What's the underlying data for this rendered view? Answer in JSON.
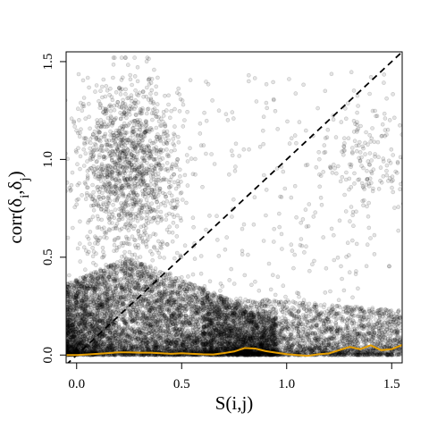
{
  "chart_data": {
    "type": "scatter",
    "xlabel": "S(i,j)",
    "ylabel_parts": [
      "corr(δ",
      "i",
      ",δ",
      "j",
      ")"
    ],
    "xlim": [
      -0.05,
      1.55
    ],
    "ylim": [
      -0.04,
      1.55
    ],
    "x_ticks": [
      0.0,
      0.5,
      1.0,
      1.5
    ],
    "x_tick_labels": [
      "0.0",
      "0.5",
      "1.0",
      "1.5"
    ],
    "y_ticks": [
      0.0,
      0.5,
      1.0,
      1.5
    ],
    "y_tick_labels": [
      "0.0",
      "0.5",
      "1.0",
      "1.5"
    ],
    "grid": false,
    "legend": "none",
    "point_color": "#000000",
    "reference_line": {
      "style": "dashed",
      "color": "#000000",
      "slope": 1,
      "intercept": 0
    },
    "smooth_line": {
      "color": "#E69F00",
      "x": [
        -0.05,
        0.0,
        0.05,
        0.1,
        0.15,
        0.2,
        0.25,
        0.3,
        0.35,
        0.4,
        0.45,
        0.5,
        0.55,
        0.6,
        0.65,
        0.7,
        0.75,
        0.8,
        0.85,
        0.9,
        0.95,
        1.0,
        1.05,
        1.1,
        1.15,
        1.2,
        1.25,
        1.3,
        1.35,
        1.4,
        1.45,
        1.5,
        1.55
      ],
      "y": [
        0.0,
        0.0,
        0.003,
        0.006,
        0.01,
        0.014,
        0.014,
        0.012,
        0.012,
        0.009,
        0.006,
        0.009,
        0.006,
        0.004,
        0.003,
        0.01,
        0.018,
        0.036,
        0.033,
        0.02,
        0.012,
        0.005,
        0.0,
        -0.004,
        0.004,
        0.008,
        0.025,
        0.042,
        0.03,
        0.05,
        0.025,
        0.03,
        0.052
      ]
    },
    "point_clusters": [
      {
        "name": "dense",
        "n": 6500,
        "x_range": [
          -0.05,
          0.95
        ],
        "y_max": 0.5
      },
      {
        "name": "upper-left",
        "n": 1400,
        "x_center": 0.25,
        "x_sd": 0.12,
        "y_center": 0.95,
        "y_sd": 0.22
      },
      {
        "name": "band",
        "n": 2600,
        "x_range": [
          0.6,
          1.55
        ],
        "y_max": 0.28
      },
      {
        "name": "upper-right",
        "n": 160,
        "x_center": 1.4,
        "x_sd": 0.12,
        "y_center": 1.0,
        "y_sd": 0.15
      },
      {
        "name": "sparse",
        "n": 500,
        "x_range": [
          0.0,
          1.55
        ],
        "y_range": [
          0.0,
          1.45
        ]
      }
    ]
  }
}
